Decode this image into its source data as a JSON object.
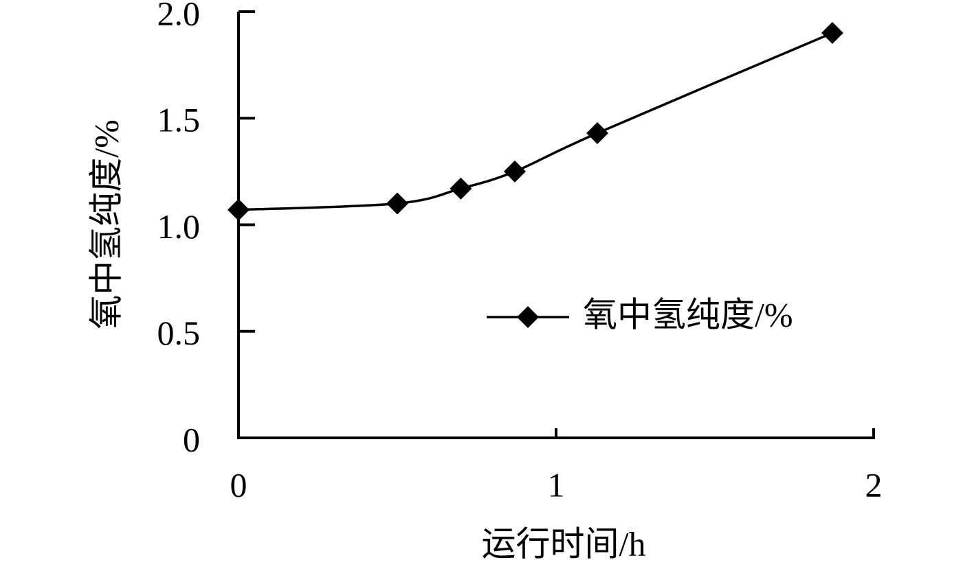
{
  "chart_data": {
    "type": "line",
    "xlabel": "运行时间/h",
    "ylabel": "氧中氢纯度/%",
    "x": [
      0,
      0.5,
      0.7,
      0.87,
      1.13,
      1.87
    ],
    "series": [
      {
        "name": "氧中氢纯度/%",
        "color": "#000000",
        "values": [
          1.07,
          1.1,
          1.17,
          1.25,
          1.43,
          1.9
        ]
      }
    ],
    "xlim": [
      0,
      2
    ],
    "xticks": [
      0,
      1,
      2
    ],
    "ylim": [
      0,
      2
    ],
    "yticks": [
      0,
      0.5,
      {
        "value": 1,
        "label": "1.0"
      },
      1.5,
      {
        "value": 2,
        "label": "2.0"
      }
    ],
    "legend": "center right",
    "smooth": true
  }
}
